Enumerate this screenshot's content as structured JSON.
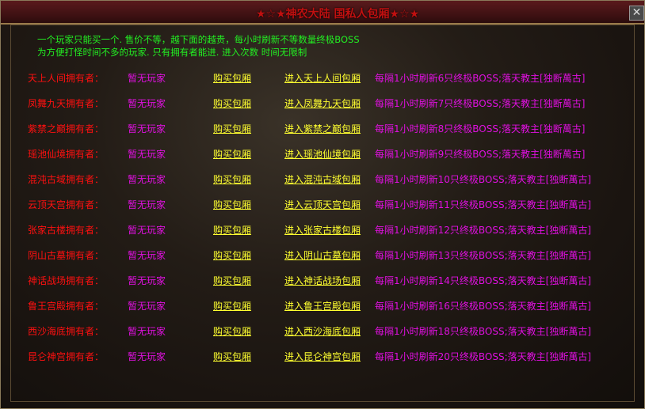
{
  "window": {
    "title": "★☆★神农大陆 国私人包厢★☆★",
    "close_icon": "close-icon"
  },
  "intro": [
    "一个玩家只能买一个. 售价不等，越下面的越贵，每小时刷新不等数量终极BOSS",
    "为方便打怪时间不多的玩家. 只有拥有者能进. 进入次数 时间无限制"
  ],
  "colors": {
    "owner": "#ff1010",
    "status": "#e010e0",
    "link": "#ffff30",
    "intro": "#22ee22"
  },
  "rows": [
    {
      "owner": "天上人间拥有者：",
      "status": "暂无玩家",
      "buy": "购买包厢",
      "enter": "进入天上人间包厢",
      "info": "每隔1小时刷新6只终极BOSS;落天教主[独断萬古]"
    },
    {
      "owner": "凤舞九天拥有者：",
      "status": "暂无玩家",
      "buy": "购买包厢",
      "enter": "进入凤舞九天包厢",
      "info": "每隔1小时刷新7只终极BOSS;落天教主[独断萬古]"
    },
    {
      "owner": "紫禁之巅拥有者：",
      "status": "暂无玩家",
      "buy": "购买包厢",
      "enter": "进入紫禁之巅包厢",
      "info": "每隔1小时刷新8只终极BOSS;落天教主[独断萬古]"
    },
    {
      "owner": "瑶池仙境拥有者：",
      "status": "暂无玩家",
      "buy": "购买包厢",
      "enter": "进入瑶池仙境包厢",
      "info": "每隔1小时刷新9只终极BOSS;落天教主[独断萬古]"
    },
    {
      "owner": "混沌古域拥有者：",
      "status": "暂无玩家",
      "buy": "购买包厢",
      "enter": "进入混沌古域包厢",
      "info": "每隔1小时刷新10只终极BOSS;落天教主[独断萬古]"
    },
    {
      "owner": "云顶天宫拥有者：",
      "status": "暂无玩家",
      "buy": "购买包厢",
      "enter": "进入云顶天宫包厢",
      "info": "每隔1小时刷新11只终极BOSS;落天教主[独断萬古]"
    },
    {
      "owner": "张家古楼拥有者：",
      "status": "暂无玩家",
      "buy": "购买包厢",
      "enter": "进入张家古楼包厢",
      "info": "每隔1小时刷新12只终极BOSS;落天教主[独断萬古]"
    },
    {
      "owner": "阴山古墓拥有者：",
      "status": "暂无玩家",
      "buy": "购买包厢",
      "enter": "进入阴山古墓包厢",
      "info": "每隔1小时刷新13只终极BOSS;落天教主[独断萬古]"
    },
    {
      "owner": "神话战场拥有者：",
      "status": "暂无玩家",
      "buy": "购买包厢",
      "enter": "进入神话战场包厢",
      "info": "每隔1小时刷新14只终极BOSS;落天教主[独断萬古]"
    },
    {
      "owner": "鲁王宫殿拥有者：",
      "status": "暂无玩家",
      "buy": "购买包厢",
      "enter": "进入鲁王宫殿包厢",
      "info": "每隔1小时刷新16只终极BOSS;落天教主[独断萬古]"
    },
    {
      "owner": "西沙海底拥有者：",
      "status": "暂无玩家",
      "buy": "购买包厢",
      "enter": "进入西沙海底包厢",
      "info": "每隔1小时刷新18只终极BOSS;落天教主[独断萬古]"
    },
    {
      "owner": "昆仑神宫拥有者：",
      "status": "暂无玩家",
      "buy": "购买包厢",
      "enter": "进入昆仑神宫包厢",
      "info": "每隔1小时刷新20只终极BOSS;落天教主[独断萬古]"
    }
  ]
}
